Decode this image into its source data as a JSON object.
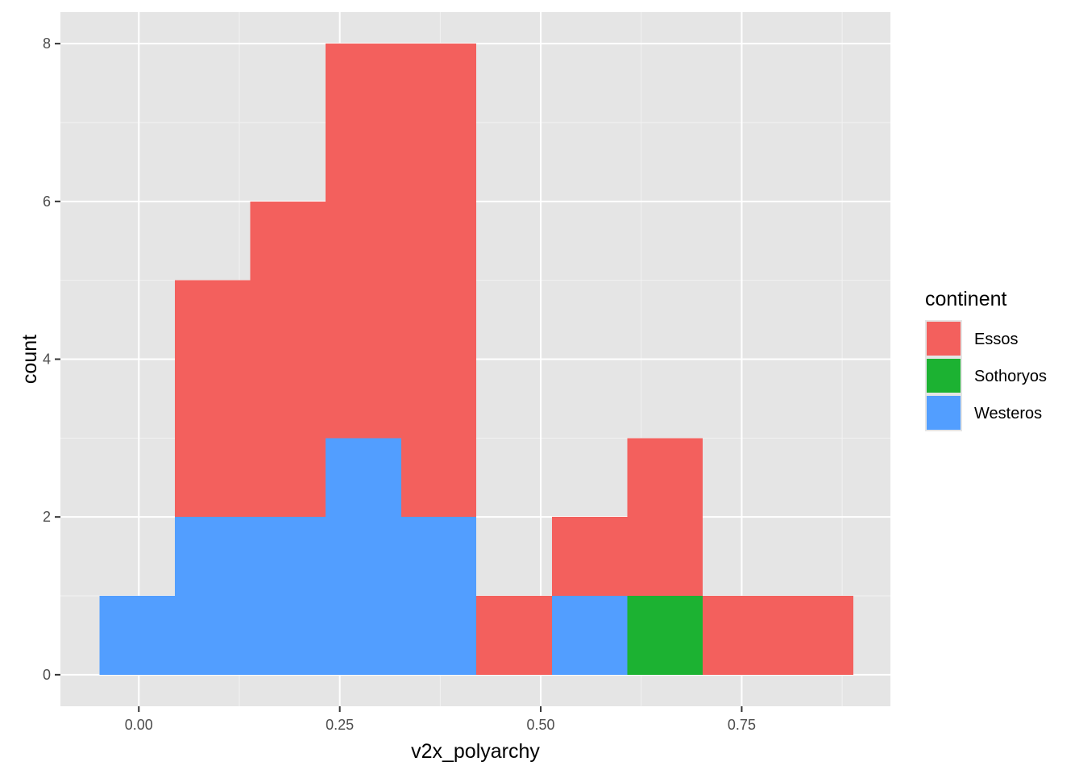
{
  "chart_data": {
    "type": "bar",
    "subtype": "stacked-histogram",
    "xlabel": "v2x_polyarchy",
    "ylabel": "count",
    "xlim": [
      -0.0975,
      0.935
    ],
    "ylim": [
      -0.4,
      8.4
    ],
    "x_ticks": [
      {
        "value": 0.0,
        "label": "0.00"
      },
      {
        "value": 0.25,
        "label": "0.25"
      },
      {
        "value": 0.5,
        "label": "0.50"
      },
      {
        "value": 0.75,
        "label": "0.75"
      }
    ],
    "y_ticks": [
      {
        "value": 0,
        "label": "0"
      },
      {
        "value": 2,
        "label": "2"
      },
      {
        "value": 4,
        "label": "4"
      },
      {
        "value": 6,
        "label": "6"
      },
      {
        "value": 8,
        "label": "8"
      }
    ],
    "grid": true,
    "legend": {
      "title": "continent",
      "position": "right"
    },
    "bins": [
      {
        "x0": -0.0488,
        "x1": 0.045
      },
      {
        "x0": 0.045,
        "x1": 0.1388
      },
      {
        "x0": 0.1388,
        "x1": 0.2325
      },
      {
        "x0": 0.2325,
        "x1": 0.3263
      },
      {
        "x0": 0.3263,
        "x1": 0.42
      },
      {
        "x0": 0.42,
        "x1": 0.5138
      },
      {
        "x0": 0.5138,
        "x1": 0.6075
      },
      {
        "x0": 0.6075,
        "x1": 0.7013
      },
      {
        "x0": 0.7013,
        "x1": 0.795
      },
      {
        "x0": 0.795,
        "x1": 0.8888
      }
    ],
    "series": [
      {
        "name": "Westeros",
        "color": "#529EFF",
        "values": [
          1,
          2,
          2,
          3,
          2,
          0,
          1,
          0,
          0,
          0
        ]
      },
      {
        "name": "Sothoryos",
        "color": "#1CB232",
        "values": [
          0,
          0,
          0,
          0,
          0,
          0,
          0,
          1,
          0,
          0
        ]
      },
      {
        "name": "Essos",
        "color": "#F3605D",
        "values": [
          0,
          3,
          4,
          5,
          6,
          1,
          1,
          2,
          1,
          1
        ]
      }
    ],
    "legend_order": [
      "Essos",
      "Sothoryos",
      "Westeros"
    ],
    "colors": {
      "panel_background": "#E5E5E5",
      "grid_major": "#FFFFFF",
      "grid_minor": "#F2F2F2",
      "tick_text": "#4D4D4D"
    }
  }
}
